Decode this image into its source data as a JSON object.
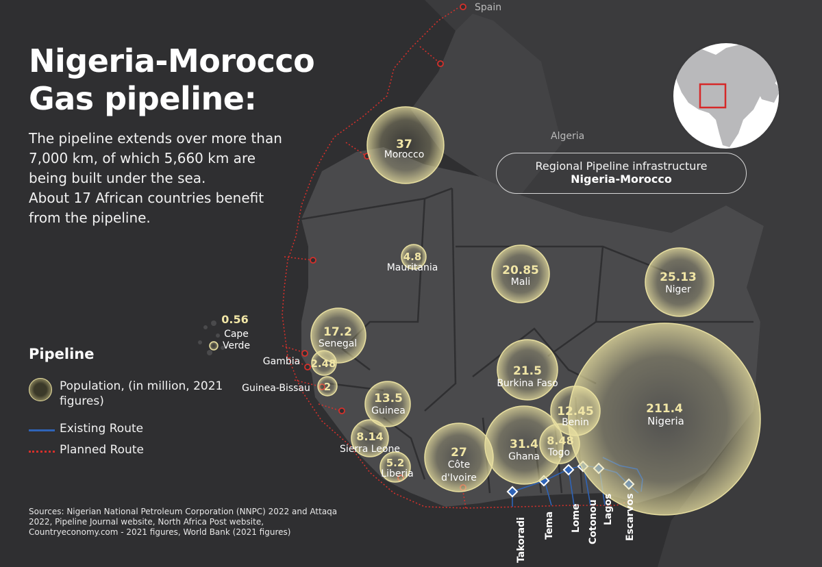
{
  "title": "Nigeria-Morocco Gas pipeline:",
  "description": [
    "The pipeline extends over more than",
    "7,000 km, of which 5,660 km are",
    "being built under the sea.",
    "About 17 African countries benefit",
    "from the pipeline."
  ],
  "info_box": {
    "line1": "Regional Pipeline infrastructure",
    "line2": "Nigeria-Morocco"
  },
  "legend": {
    "title": "Pipeline",
    "population": "Population, (in million, 2021 figures)",
    "existing": "Existing Route",
    "planned": "Planned Route"
  },
  "sources": "Sources: Nigerian National Petroleum Corporation (NNPC) 2022 and Attaqa 2022, Pipeline Journal website, North Africa Post website, Countryeconomy.com - 2021 figures, World Bank (2021 figures)",
  "map_labels": {
    "spain": "Spain",
    "algeria": "Algeria"
  },
  "countries": [
    {
      "name": "Morocco",
      "population": "37"
    },
    {
      "name": "Mauritania",
      "population": "4.8"
    },
    {
      "name": "Mali",
      "population": "20.85"
    },
    {
      "name": "Niger",
      "population": "25.13"
    },
    {
      "name": "Cape Verde",
      "name_lines": [
        "Cape",
        "Verde"
      ],
      "population": "0.56"
    },
    {
      "name": "Senegal",
      "population": "17.2"
    },
    {
      "name": "Gambia",
      "population": "2.48"
    },
    {
      "name": "Guinea-Bissau",
      "population": "2"
    },
    {
      "name": "Guinea",
      "population": "13.5"
    },
    {
      "name": "Sierra Leone",
      "population": "8.14"
    },
    {
      "name": "Liberia",
      "population": "5.2"
    },
    {
      "name": "Côte d'Ivoire",
      "name_lines": [
        "Côte",
        "d'Ivoire"
      ],
      "population": "27"
    },
    {
      "name": "Burkina Faso",
      "population": "21.5"
    },
    {
      "name": "Ghana",
      "population": "31.4"
    },
    {
      "name": "Togo",
      "population": "8.48"
    },
    {
      "name": "Benin",
      "population": "12.45"
    },
    {
      "name": "Nigeria",
      "population": "211.4"
    }
  ],
  "terminals": [
    "Takoradi",
    "Tema",
    "Lome",
    "Cotonou",
    "Lagos",
    "Escarvos"
  ],
  "colors": {
    "background": "#2f2f31",
    "land": "#4a4a4c",
    "bubble": "#e8dfa0",
    "existing_route": "#2f64b8",
    "planned_route": "#d6302b"
  },
  "icons": {
    "globe": "globe-locator-icon",
    "bubble": "population-bubble-icon"
  }
}
